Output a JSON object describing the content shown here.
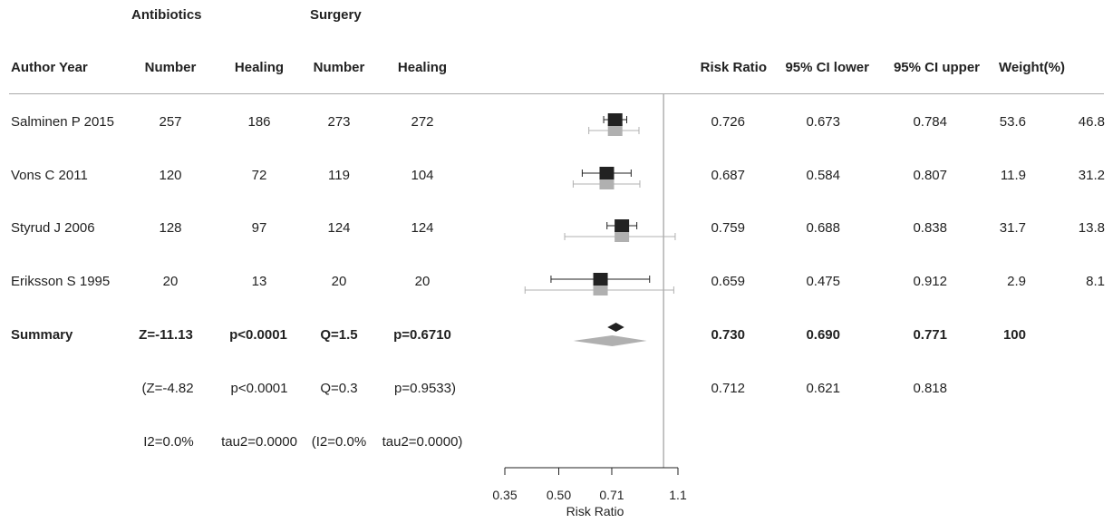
{
  "group_headers": {
    "group1": "Antibiotics",
    "group2": "Surgery"
  },
  "columns": {
    "study": "Author Year",
    "g1_number": "Number",
    "g1_healing": "Healing",
    "g2_number": "Number",
    "g2_healing": "Healing",
    "rr": "Risk Ratio",
    "ci_lower": "95% CI lower",
    "ci_upper": "95% CI upper",
    "weight": "Weight(%)"
  },
  "studies": [
    {
      "study": "Salminen P 2015",
      "g1_number": "257",
      "g1_healing": "186",
      "g2_number": "273",
      "g2_healing": "272",
      "rr": "0.726",
      "ci_lower": "0.673",
      "ci_upper": "0.784",
      "weight_fixed": "53.6",
      "weight_random": "46.8"
    },
    {
      "study": "Vons C 2011",
      "g1_number": "120",
      "g1_healing": "72",
      "g2_number": "119",
      "g2_healing": "104",
      "rr": "0.687",
      "ci_lower": "0.584",
      "ci_upper": "0.807",
      "weight_fixed": "11.9",
      "weight_random": "31.2"
    },
    {
      "study": "Styrud J 2006",
      "g1_number": "128",
      "g1_healing": "97",
      "g2_number": "124",
      "g2_healing": "124",
      "rr": "0.759",
      "ci_lower": "0.688",
      "ci_upper": "0.838",
      "weight_fixed": "31.7",
      "weight_random": "13.8"
    },
    {
      "study": "Eriksson S 1995",
      "g1_number": "20",
      "g1_healing": "13",
      "g2_number": "20",
      "g2_healing": "20",
      "rr": "0.659",
      "ci_lower": "0.475",
      "ci_upper": "0.912",
      "weight_fixed": "2.9",
      "weight_random": "8.1"
    }
  ],
  "summary": {
    "label": "Summary",
    "z": "Z=-11.13",
    "p": "p<0.0001",
    "q": "Q=1.5",
    "pq": "p=0.6710",
    "rr": "0.730",
    "ci_lower": "0.690",
    "ci_upper": "0.771",
    "weight": "100"
  },
  "summary_random": {
    "z": "(Z=-4.82",
    "p": "p<0.0001",
    "q": "Q=0.3",
    "pq": "p=0.9533)",
    "rr": "0.712",
    "ci_lower": "0.621",
    "ci_upper": "0.818"
  },
  "heterogeneity": {
    "i2": "I2=0.0%",
    "tau2": "tau2=0.0000",
    "i2_random": "(I2=0.0%",
    "tau2_random": "tau2=0.0000)"
  },
  "chart_data": {
    "type": "forest",
    "scale": "log",
    "xlabel": "Risk Ratio",
    "xlim": [
      0.35,
      1.1
    ],
    "ticks": [
      0.35,
      0.5,
      0.71,
      1.1
    ],
    "tick_labels": [
      "0.35",
      "0.50",
      "0.71",
      "1.1"
    ],
    "reference_line": 1.0,
    "fixed_color": "#222222",
    "random_color": "#b0b0b0",
    "studies": [
      {
        "name": "Salminen P 2015",
        "fixed": {
          "rr": 0.726,
          "lo": 0.673,
          "hi": 0.784
        },
        "random": {
          "rr": 0.726,
          "lo": 0.61,
          "hi": 0.85
        }
      },
      {
        "name": "Vons C 2011",
        "fixed": {
          "rr": 0.687,
          "lo": 0.584,
          "hi": 0.807
        },
        "random": {
          "rr": 0.687,
          "lo": 0.55,
          "hi": 0.855
        }
      },
      {
        "name": "Styrud J 2006",
        "fixed": {
          "rr": 0.759,
          "lo": 0.688,
          "hi": 0.838
        },
        "random": {
          "rr": 0.759,
          "lo": 0.52,
          "hi": 1.08
        }
      },
      {
        "name": "Eriksson S 1995",
        "fixed": {
          "rr": 0.659,
          "lo": 0.475,
          "hi": 0.912
        },
        "random": {
          "rr": 0.659,
          "lo": 0.4,
          "hi": 1.07
        }
      }
    ],
    "summary_fixed": {
      "rr": 0.73,
      "lo": 0.69,
      "hi": 0.771
    },
    "summary_random": {
      "rr": 0.712,
      "lo": 0.621,
      "hi": 0.818
    }
  }
}
